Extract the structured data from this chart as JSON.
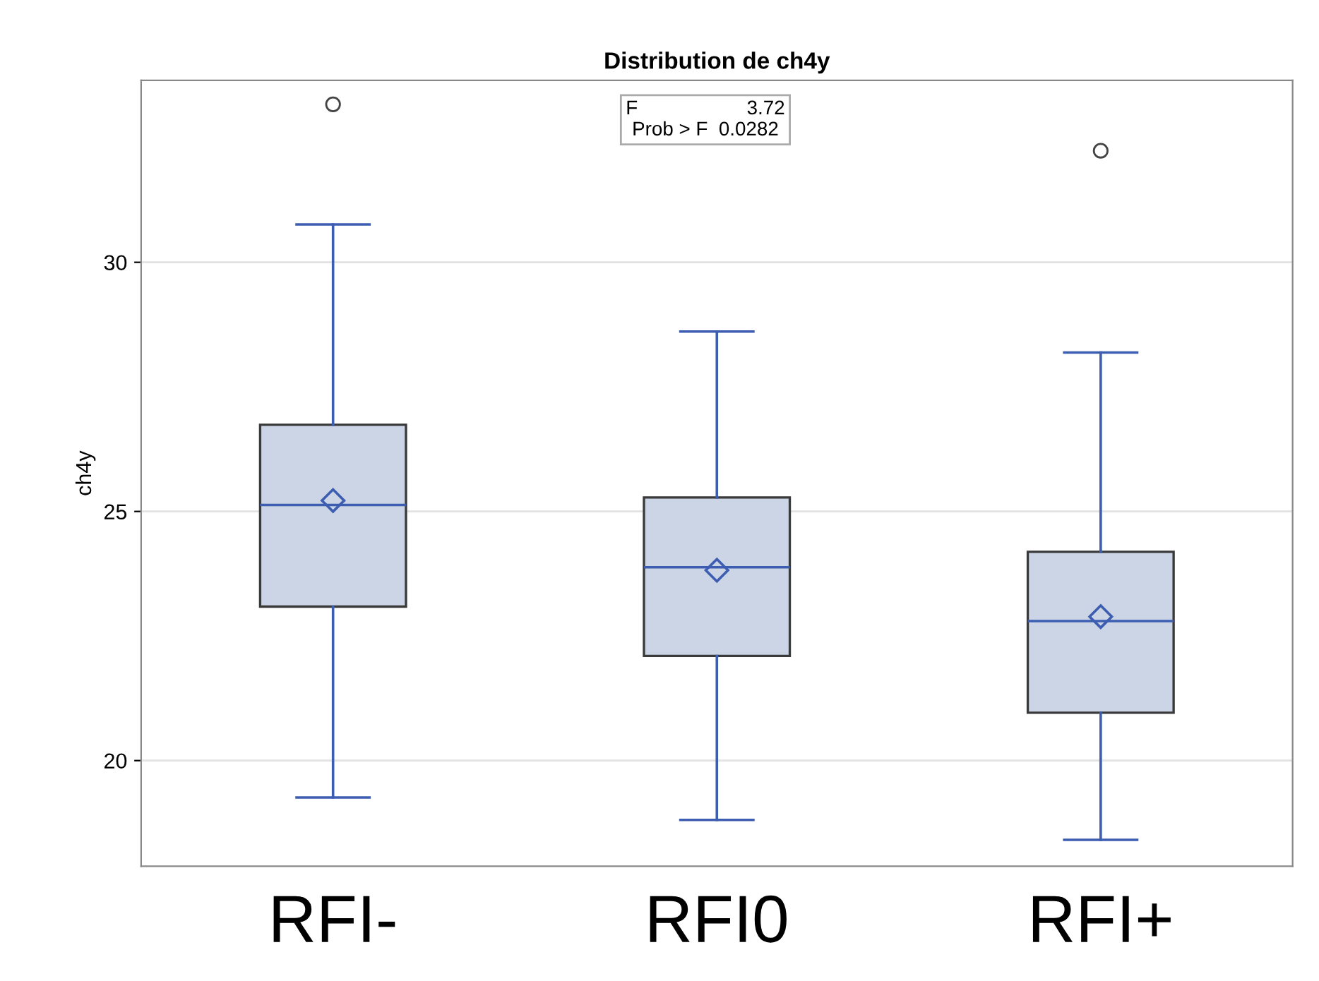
{
  "chart_data": {
    "type": "box",
    "title": "Distribution de ch4y",
    "ylabel": "ch4y",
    "categories": [
      "RFI-",
      "RFI0",
      "RFI+"
    ],
    "boxes": [
      {
        "low": 19.26,
        "q1": 23.09,
        "median": 25.13,
        "q3": 26.74,
        "high": 30.76,
        "mean": 25.22,
        "outliers": [
          33.17
        ]
      },
      {
        "low": 18.81,
        "q1": 22.1,
        "median": 23.88,
        "q3": 25.28,
        "high": 28.61,
        "mean": 23.82
      },
      {
        "low": 18.41,
        "q1": 20.96,
        "median": 22.8,
        "q3": 24.19,
        "high": 28.19,
        "mean": 22.89,
        "outliers": [
          32.24
        ]
      }
    ],
    "color": "#cbd5e5",
    "ylim": [
      17.88,
      33.65
    ],
    "yticks": [
      20,
      25,
      30
    ],
    "grid": "y",
    "annotations": [
      "F                    3.72",
      "Prob > F  0.0282"
    ]
  }
}
